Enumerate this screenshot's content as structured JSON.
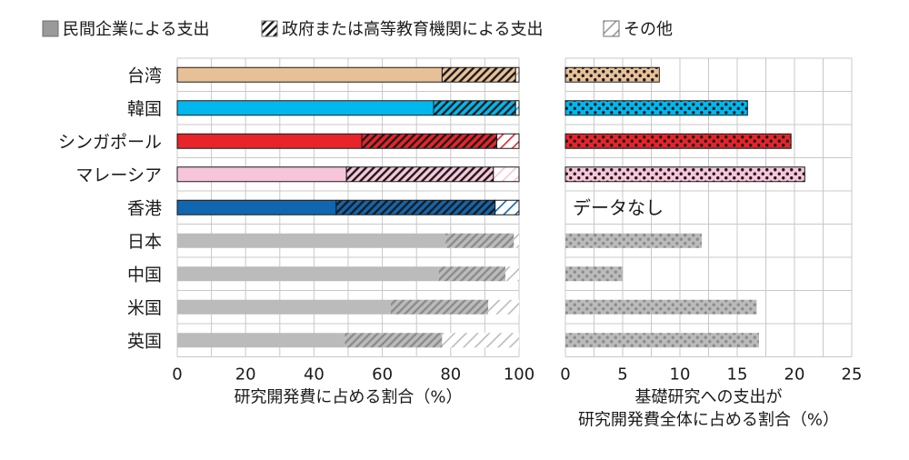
{
  "legend": {
    "private": "民間企業による支出",
    "government": "政府または高等教育機関による支出",
    "other": "その他"
  },
  "no_data_label": "データなし",
  "chart_data": [
    {
      "type": "bar",
      "stacked": true,
      "orientation": "horizontal",
      "xlabel": "研究開発費に占める割合（%）",
      "xlim": [
        0,
        100
      ],
      "xticks": [
        0,
        20,
        40,
        60,
        80,
        100
      ],
      "grid": true,
      "legend_position": "top",
      "categories": [
        "台湾",
        "韓国",
        "シンガポール",
        "マレーシア",
        "香港",
        "日本",
        "中国",
        "米国",
        "英国"
      ],
      "series": [
        {
          "name": "民間企業による支出",
          "values": [
            77.5,
            75.0,
            54.0,
            49.5,
            46.5,
            78.5,
            76.5,
            62.5,
            49.0
          ]
        },
        {
          "name": "政府または高等教育機関による支出",
          "values": [
            21.5,
            24.0,
            39.5,
            43.0,
            46.5,
            20.0,
            19.5,
            28.5,
            28.5
          ]
        },
        {
          "name": "その他",
          "values": [
            1.0,
            1.0,
            6.5,
            7.5,
            7.0,
            1.5,
            4.0,
            9.0,
            22.5
          ]
        }
      ],
      "colors": [
        "#e8c098",
        "#00b8ee",
        "#e8232a",
        "#f7c5d9",
        "#1166b0",
        "#bbbbbb",
        "#bbbbbb",
        "#bbbbbb",
        "#bbbbbb"
      ],
      "muted": [
        false,
        false,
        false,
        false,
        false,
        true,
        true,
        true,
        true
      ]
    },
    {
      "type": "bar",
      "orientation": "horizontal",
      "pattern": "dotted",
      "xlabel": "基礎研究への支出が\n研究開発費全体に占める割合（%）",
      "xlim": [
        0,
        25
      ],
      "xticks": [
        0,
        5,
        10,
        15,
        20,
        25
      ],
      "grid": true,
      "categories": [
        "台湾",
        "韓国",
        "シンガポール",
        "マレーシア",
        "香港",
        "日本",
        "中国",
        "米国",
        "英国"
      ],
      "values": [
        8.2,
        15.9,
        19.7,
        20.9,
        null,
        11.9,
        5.0,
        16.7,
        16.9
      ],
      "colors": [
        "#e8c098",
        "#00b8ee",
        "#e8232a",
        "#f7c5d9",
        "#1166b0",
        "#bbbbbb",
        "#bbbbbb",
        "#bbbbbb",
        "#bbbbbb"
      ],
      "muted": [
        false,
        false,
        false,
        false,
        false,
        true,
        true,
        true,
        true
      ]
    }
  ]
}
